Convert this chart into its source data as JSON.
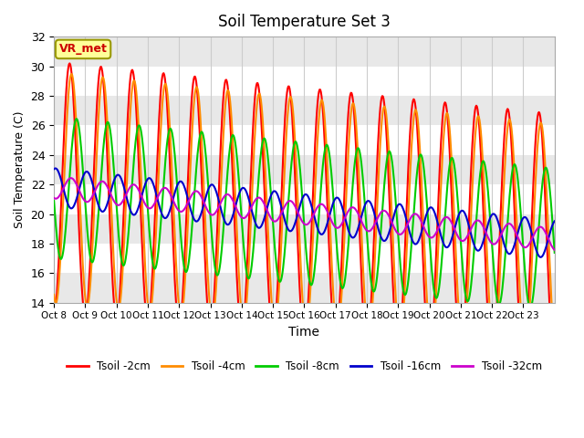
{
  "title": "Soil Temperature Set 3",
  "xlabel": "Time",
  "ylabel": "Soil Temperature (C)",
  "ylim": [
    14,
    32
  ],
  "yticks": [
    14,
    16,
    18,
    20,
    22,
    24,
    26,
    28,
    30,
    32
  ],
  "x_labels": [
    "Oct 8",
    "Oct 9",
    "Oct 10",
    "Oct 11",
    "Oct 12",
    "Oct 13",
    "Oct 14",
    "Oct 15",
    "Oct 16",
    "Oct 17",
    "Oct 18",
    "Oct 19",
    "Oct 20",
    "Oct 21",
    "Oct 22",
    "Oct 23"
  ],
  "series_colors": [
    "#ff0000",
    "#ff8c00",
    "#00cc00",
    "#0000cc",
    "#cc00cc"
  ],
  "series_labels": [
    "Tsoil -2cm",
    "Tsoil -4cm",
    "Tsoil -8cm",
    "Tsoil -16cm",
    "Tsoil -32cm"
  ],
  "vr_met_label": "VR_met",
  "background_color": "#ffffff",
  "grid_color": "#cccccc",
  "alt_band_color": "#e8e8e8",
  "days": 16
}
